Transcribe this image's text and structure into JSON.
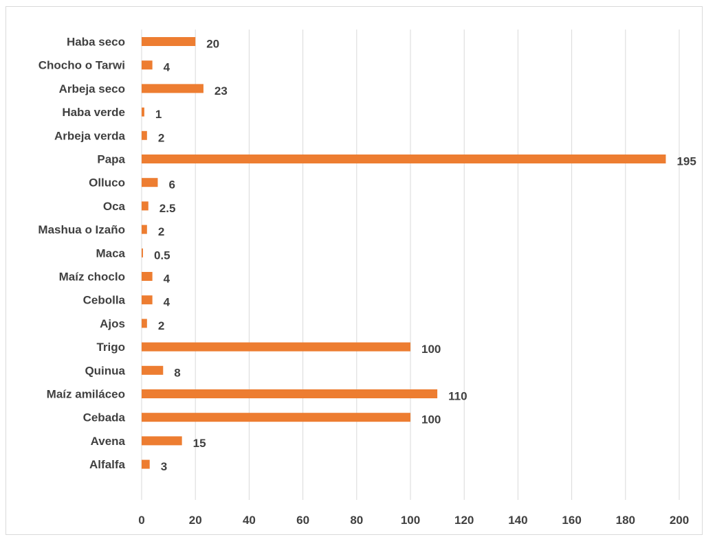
{
  "chart_data": {
    "type": "bar",
    "orientation": "horizontal",
    "categories": [
      "Haba seco",
      "Chocho o Tarwi",
      "Arbeja seco",
      "Haba verde",
      "Arbeja verda",
      "Papa",
      "Olluco",
      "Oca",
      "Mashua o Izaño",
      "Maca",
      "Maíz choclo",
      "Cebolla",
      "Ajos",
      "Trigo",
      "Quinua",
      "Maíz amiláceo",
      "Cebada",
      "Avena",
      "Alfalfa"
    ],
    "values": [
      20,
      4,
      23,
      1,
      2,
      195,
      6,
      2.5,
      2,
      0.5,
      4,
      4,
      2,
      100,
      8,
      110,
      100,
      15,
      3
    ],
    "value_labels": [
      "20",
      "4",
      "23",
      "1",
      "2",
      "195",
      "6",
      "2.5",
      "2",
      "0.5",
      "4",
      "4",
      "2",
      "100",
      "8",
      "110",
      "100",
      "15",
      "3"
    ],
    "xlim": [
      0,
      200
    ],
    "xticks": [
      "0",
      "20",
      "40",
      "60",
      "80",
      "100",
      "120",
      "140",
      "160",
      "180",
      "200"
    ],
    "grid": "vertical",
    "legend": "none",
    "title": "",
    "xlabel": "",
    "ylabel": "",
    "colors": {
      "bar": "#ED7D31",
      "grid": "#d9d9d9",
      "text": "#404040"
    }
  }
}
